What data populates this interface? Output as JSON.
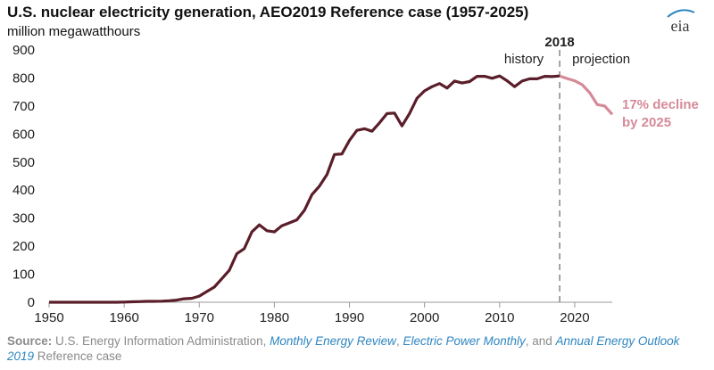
{
  "header": {
    "title": "U.S. nuclear electricity generation, AEO2019 Reference case (1957-2025)",
    "subtitle": "million megawatthours",
    "logo_text": "eia"
  },
  "annotations": {
    "divider_year_label": "2018",
    "history_label": "history",
    "projection_label": "projection",
    "decline_line1": "17% decline",
    "decline_line2": "by 2025"
  },
  "source": {
    "label": "Source:",
    "text1": " U.S. Energy Information Administration, ",
    "link1": "Monthly Energy Review",
    "sep1": ", ",
    "link2": "Electric Power Monthly",
    "sep2": ", and ",
    "link3": "Annual Energy Outlook 2019",
    "text2": " Reference case"
  },
  "colors": {
    "history_line": "#5a1e2a",
    "projection_line": "#d58a98",
    "axis": "#9a9a9a",
    "divider": "#9a9a9a"
  },
  "chart_data": {
    "type": "line",
    "title": "U.S. nuclear electricity generation, AEO2019 Reference case (1957-2025)",
    "ylabel": "million megawatthours",
    "xlabel": "",
    "xlim": [
      1950,
      2025
    ],
    "ylim": [
      0,
      900
    ],
    "xticks": [
      1950,
      1960,
      1970,
      1980,
      1990,
      2000,
      2010,
      2020
    ],
    "yticks": [
      0,
      100,
      200,
      300,
      400,
      500,
      600,
      700,
      800,
      900
    ],
    "grid": false,
    "divider_year": 2018,
    "series": [
      {
        "segment": "history",
        "x": [
          1950,
          1957,
          1958,
          1959,
          1960,
          1961,
          1962,
          1963,
          1964,
          1965,
          1966,
          1967,
          1968,
          1969,
          1970,
          1971,
          1972,
          1973,
          1974,
          1975,
          1976,
          1977,
          1978,
          1979,
          1980,
          1981,
          1982,
          1983,
          1984,
          1985,
          1986,
          1987,
          1988,
          1989,
          1990,
          1991,
          1992,
          1993,
          1994,
          1995,
          1996,
          1997,
          1998,
          1999,
          2000,
          2001,
          2002,
          2003,
          2004,
          2005,
          2006,
          2007,
          2008,
          2009,
          2010,
          2011,
          2012,
          2013,
          2014,
          2015,
          2016,
          2017,
          2018
        ],
        "values": [
          0,
          0,
          0,
          0,
          0.5,
          1.7,
          2.3,
          3.2,
          3.3,
          3.7,
          5.5,
          7.7,
          12.5,
          13.9,
          21.8,
          38.1,
          54.1,
          83.5,
          114,
          173,
          191,
          251,
          276,
          255,
          251,
          273,
          283,
          294,
          328,
          384,
          414,
          455,
          527,
          529,
          577,
          613,
          619,
          610,
          640,
          673,
          675,
          629,
          673,
          728,
          754,
          769,
          780,
          764,
          789,
          782,
          787,
          806,
          806,
          799,
          807,
          790,
          769,
          789,
          797,
          797,
          806,
          805,
          807
        ]
      },
      {
        "segment": "projection",
        "x": [
          2018,
          2019,
          2020,
          2021,
          2022,
          2023,
          2024,
          2025
        ],
        "values": [
          807,
          798,
          790,
          776,
          747,
          705,
          700,
          670
        ]
      }
    ]
  }
}
